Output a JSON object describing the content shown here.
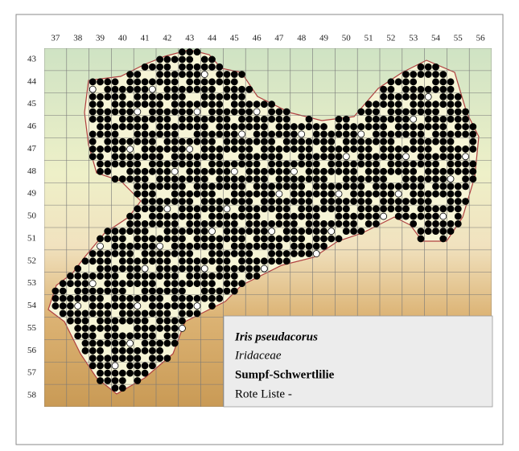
{
  "grid": {
    "columns": [
      37,
      38,
      39,
      40,
      41,
      42,
      43,
      44,
      45,
      46,
      47,
      48,
      49,
      50,
      51,
      52,
      53,
      54,
      55,
      56
    ],
    "rows": [
      43,
      44,
      45,
      46,
      47,
      48,
      49,
      50,
      51,
      52,
      53,
      54,
      55,
      56,
      57,
      58
    ]
  },
  "info": {
    "species": "Iris pseudacorus",
    "family": "Iridaceae",
    "common_name": "Sumpf-Schwertlilie",
    "red_list": "Rote Liste -"
  }
}
